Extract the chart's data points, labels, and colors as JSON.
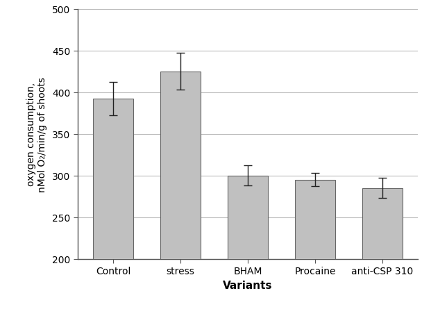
{
  "categories": [
    "Control",
    "stress",
    "BHAM",
    "Procaine",
    "anti-CSP 310"
  ],
  "values": [
    392,
    425,
    300,
    295,
    285
  ],
  "errors": [
    20,
    22,
    12,
    8,
    12
  ],
  "bar_color": "#c0c0c0",
  "bar_edgecolor": "#666666",
  "ylabel_line1": "oxygen consumption,",
  "ylabel_line2": "nMol O₂/min/g of shoots",
  "xlabel": "Variants",
  "ylim": [
    200,
    500
  ],
  "yticks": [
    200,
    250,
    300,
    350,
    400,
    450,
    500
  ],
  "background_color": "#ffffff",
  "grid_color": "#bbbbbb",
  "bar_width": 0.6,
  "figsize": [
    6.21,
    4.56
  ],
  "dpi": 100
}
